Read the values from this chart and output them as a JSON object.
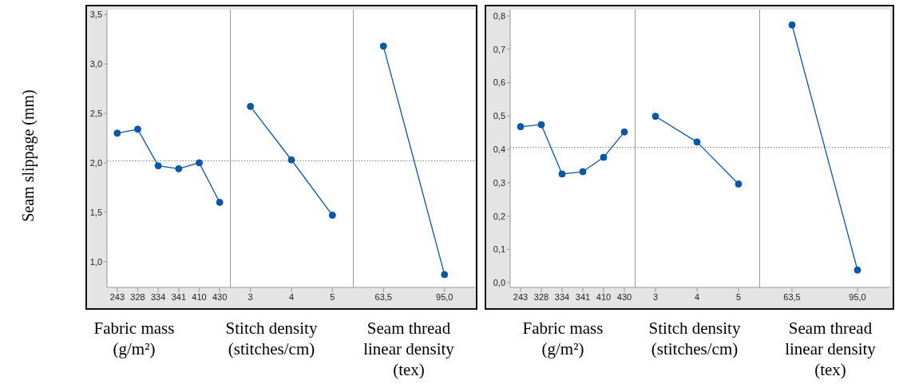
{
  "chart_data": [
    {
      "type": "line",
      "ylabel": "Seam slippage (mm)",
      "xlabel": "Fabric mass (g/m²)",
      "categories": [
        "243",
        "328",
        "334",
        "341",
        "410",
        "430"
      ],
      "values": [
        2.3,
        2.34,
        1.97,
        1.94,
        2.0,
        1.6
      ],
      "color": "#0a57a8",
      "marker": "circle",
      "ylim": [
        0.74,
        3.55
      ],
      "yticks": [
        {
          "value": 1,
          "label": "1,0"
        },
        {
          "value": 1.5,
          "label": "1,5"
        },
        {
          "value": 2,
          "label": "2,0"
        },
        {
          "value": 2.5,
          "label": "2,5"
        },
        {
          "value": 3,
          "label": "3,0"
        },
        {
          "value": 3.5,
          "label": "3,5"
        }
      ],
      "ref_lines": [
        {
          "axis": "y",
          "value": 2.02,
          "color": "#808080",
          "line_style": "dotted"
        }
      ]
    },
    {
      "type": "line",
      "xlabel": "Stitch density (stitches/cm)",
      "categories": [
        "3",
        "4",
        "5"
      ],
      "values": [
        2.57,
        2.03,
        1.47
      ],
      "color": "#0a57a8",
      "marker": "circle",
      "ylim": [
        0.74,
        3.55
      ],
      "tick_labels": "x",
      "ref_lines": [
        {
          "axis": "y",
          "value": 2.02,
          "color": "#808080",
          "line_style": "dotted"
        }
      ]
    },
    {
      "type": "line",
      "xlabel": "Seam thread linear density (tex)",
      "categories": [
        "63,5",
        "95,0"
      ],
      "values": [
        3.18,
        0.87
      ],
      "color": "#0a57a8",
      "marker": "circle",
      "ylim": [
        0.74,
        3.55
      ],
      "tick_labels": "x",
      "ref_lines": [
        {
          "axis": "y",
          "value": 2.02,
          "color": "#808080",
          "line_style": "dotted"
        }
      ]
    },
    {
      "type": "line",
      "xlabel": "Fabric mass (g/m²)",
      "categories": [
        "243",
        "328",
        "334",
        "341",
        "410",
        "430"
      ],
      "values": [
        0.468,
        0.474,
        0.326,
        0.333,
        0.376,
        0.452
      ],
      "color": "#0a57a8",
      "marker": "circle",
      "ylim": [
        -0.014,
        0.819
      ],
      "yticks": [
        {
          "value": 0,
          "label": "0,0"
        },
        {
          "value": 0.1,
          "label": "0,1"
        },
        {
          "value": 0.2,
          "label": "0,2"
        },
        {
          "value": 0.3,
          "label": "0,3"
        },
        {
          "value": 0.4,
          "label": "0,4"
        },
        {
          "value": 0.5,
          "label": "0,5"
        },
        {
          "value": 0.6,
          "label": "0,6"
        },
        {
          "value": 0.7,
          "label": "0,7"
        },
        {
          "value": 0.8,
          "label": "0,8"
        }
      ],
      "ref_lines": [
        {
          "axis": "y",
          "value": 0.406,
          "color": "#808080",
          "line_style": "dotted"
        }
      ]
    },
    {
      "type": "line",
      "xlabel": "Stitch density (stitches/cm)",
      "categories": [
        "3",
        "4",
        "5"
      ],
      "values": [
        0.499,
        0.422,
        0.296
      ],
      "color": "#0a57a8",
      "marker": "circle",
      "ylim": [
        -0.014,
        0.819
      ],
      "tick_labels": "x",
      "ref_lines": [
        {
          "axis": "y",
          "value": 0.406,
          "color": "#808080",
          "line_style": "dotted"
        }
      ]
    },
    {
      "type": "line",
      "xlabel": "Seam thread linear density (tex)",
      "categories": [
        "63,5",
        "95,0"
      ],
      "values": [
        0.773,
        0.038
      ],
      "color": "#0a57a8",
      "marker": "circle",
      "ylim": [
        -0.014,
        0.819
      ],
      "tick_labels": "x",
      "ref_lines": [
        {
          "axis": "y",
          "value": 0.406,
          "color": "#808080",
          "line_style": "dotted"
        }
      ]
    }
  ]
}
